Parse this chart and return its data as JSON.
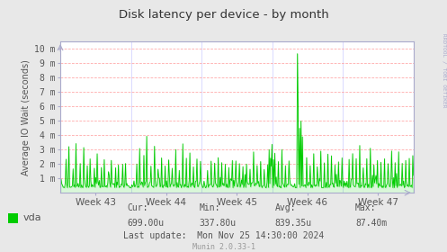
{
  "title": "Disk latency per device - by month",
  "ylabel": "Average IO Wait (seconds)",
  "x_week_labels": [
    "Week 43",
    "Week 44",
    "Week 45",
    "Week 46",
    "Week 47"
  ],
  "ytick_labels": [
    "1 m",
    "2 m",
    "3 m",
    "4 m",
    "5 m",
    "6 m",
    "7 m",
    "8 m",
    "9 m",
    "10 m"
  ],
  "ytick_values": [
    0.001,
    0.002,
    0.003,
    0.004,
    0.005,
    0.006,
    0.007,
    0.008,
    0.009,
    0.01
  ],
  "ylim": [
    0,
    0.0105
  ],
  "bg_color": "#e8e8e8",
  "plot_bg_color": "#ffffff",
  "grid_color_h": "#ff9999",
  "grid_color_v": "#ccccff",
  "line_color": "#00cc00",
  "legend_label": "vda",
  "legend_color": "#00cc00",
  "side_text": "RRDTOOL / TOBI OETIKER",
  "title_color": "#333333",
  "axis_color": "#aaaacc",
  "text_color": "#555555",
  "munin_color": "#999999"
}
